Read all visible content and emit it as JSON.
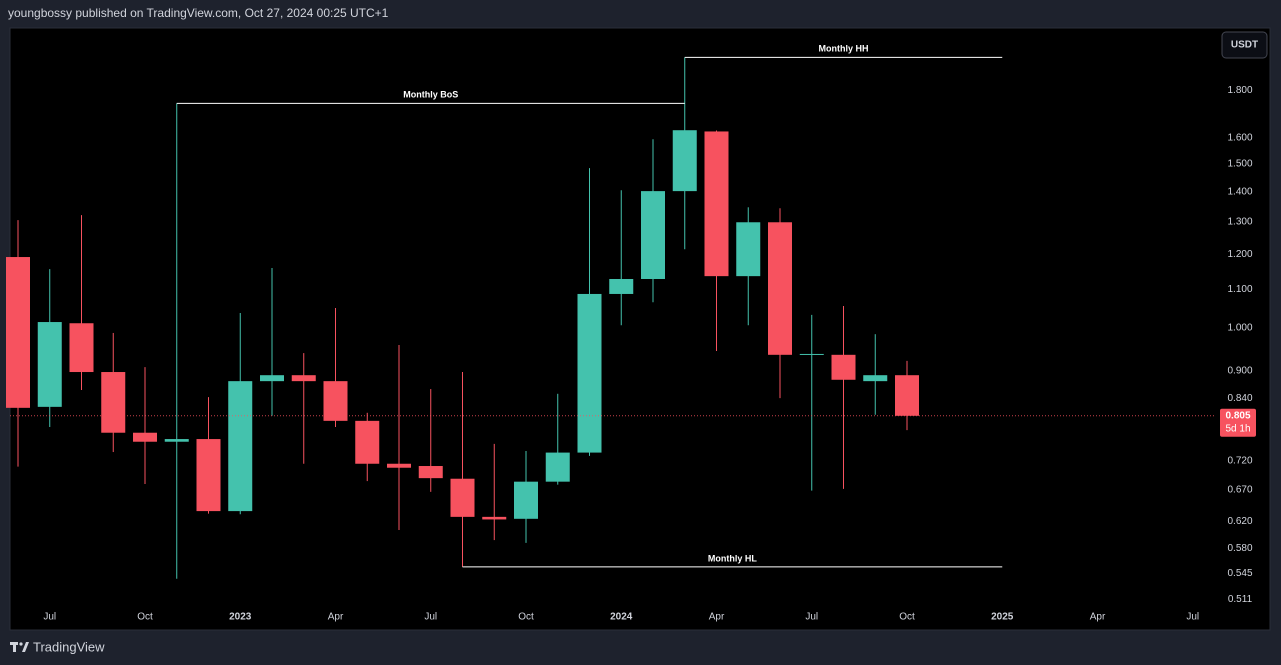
{
  "header": "youngbossy published on TradingView.com, Oct 27, 2024 00:25 UTC+1",
  "footer": "TradingView",
  "chart_data": {
    "type": "candlestick",
    "currency": "USDT",
    "countdown": "5d 1h",
    "log_scale": true,
    "up_color": "#44c2ad",
    "down_color": "#f7525f",
    "categories": [
      null,
      "Jul",
      null,
      null,
      "Oct",
      null,
      null,
      "2023",
      null,
      null,
      "Apr",
      null,
      null,
      "Jul",
      null,
      null,
      "Oct",
      null,
      null,
      "2024",
      null,
      null,
      "Apr",
      null,
      null,
      "Jul",
      null,
      null,
      "Oct",
      null,
      null,
      "2025",
      null,
      null,
      "Apr",
      null,
      null,
      "Jul"
    ],
    "open": [
      1.192,
      0.823,
      1.012,
      0.897,
      0.772,
      0.755,
      0.76,
      0.636,
      0.877,
      0.89,
      0.877,
      0.795,
      0.715,
      0.711,
      0.689,
      0.627,
      0.624,
      0.684,
      0.735,
      1.088,
      1.129,
      1.403,
      1.626,
      1.137,
      1.299,
      0.936,
      0.936,
      0.877,
      0.89,
      null,
      null,
      null,
      null,
      null,
      null,
      null,
      null,
      null
    ],
    "high": [
      1.306,
      1.157,
      1.322,
      0.988,
      0.908,
      1.743,
      0.843,
      1.038,
      1.16,
      0.94,
      1.051,
      0.811,
      0.959,
      0.86,
      0.897,
      0.751,
      0.738,
      0.85,
      1.485,
      1.406,
      1.595,
      1.953,
      1.63,
      1.348,
      1.345,
      1.033,
      1.056,
      0.985,
      0.922,
      null,
      null,
      null,
      null,
      null,
      null,
      null,
      null,
      null
    ],
    "low": [
      0.71,
      0.783,
      0.858,
      0.736,
      0.68,
      0.538,
      0.632,
      0.631,
      0.805,
      0.715,
      0.783,
      0.685,
      0.607,
      0.667,
      0.554,
      0.592,
      0.588,
      0.679,
      0.729,
      1.007,
      1.066,
      1.215,
      0.945,
      1.007,
      0.841,
      0.669,
      0.672,
      0.807,
      0.777,
      null,
      null,
      null,
      null,
      null,
      null,
      null,
      null,
      null
    ],
    "close": [
      0.821,
      1.015,
      0.897,
      0.772,
      0.755,
      0.76,
      0.636,
      0.877,
      0.89,
      0.877,
      0.795,
      0.715,
      0.708,
      0.69,
      0.627,
      0.623,
      0.684,
      0.735,
      1.088,
      1.129,
      1.403,
      1.631,
      1.137,
      1.299,
      0.936,
      0.938,
      0.88,
      0.89,
      0.805,
      null,
      null,
      null,
      null,
      null,
      null,
      null,
      null,
      null
    ],
    "ylim": [
      0.474,
      2.1
    ],
    "yticks": [
      {
        "value": 1.8,
        "label": "1.800"
      },
      {
        "value": 1.6,
        "label": "1.600"
      },
      {
        "value": 1.5,
        "label": "1.500"
      },
      {
        "value": 1.4,
        "label": "1.400"
      },
      {
        "value": 1.3,
        "label": "1.300"
      },
      {
        "value": 1.2,
        "label": "1.200"
      },
      {
        "value": 1.1,
        "label": "1.100"
      },
      {
        "value": 1.0,
        "label": "1.000"
      },
      {
        "value": 0.9,
        "label": "0.900"
      },
      {
        "value": 0.84,
        "label": "0.840"
      },
      {
        "value": 0.72,
        "label": "0.720"
      },
      {
        "value": 0.67,
        "label": "0.670"
      },
      {
        "value": 0.62,
        "label": "0.620"
      },
      {
        "value": 0.58,
        "label": "0.580"
      },
      0.545,
      0.511
    ],
    "annotations": [
      {
        "text": "Monthly BoS",
        "value": 1.743,
        "from": 5,
        "to": 21
      },
      {
        "text": "Monthly HH",
        "value": 1.953,
        "from": 21,
        "to": 31
      },
      {
        "text": "Monthly HL",
        "value": 0.554,
        "from": 14,
        "to": 31
      }
    ]
  }
}
